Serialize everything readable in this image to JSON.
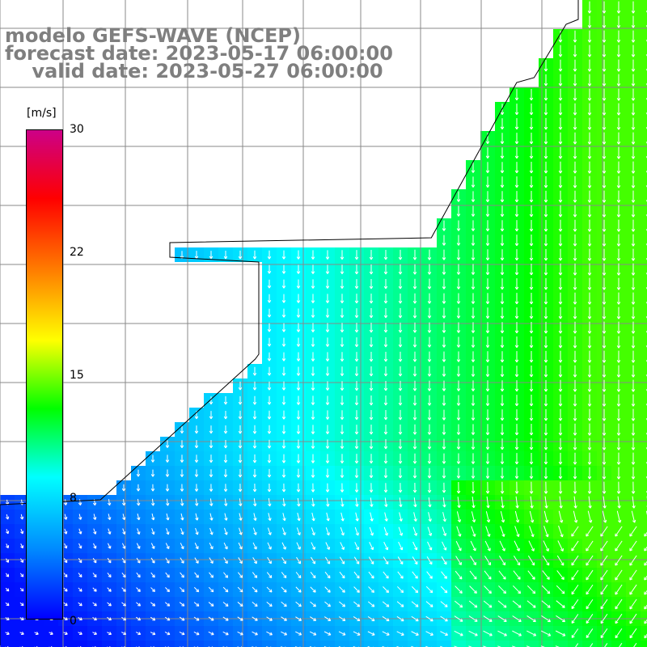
{
  "title": {
    "line1": "modelo GEFS-WAVE (NCEP)",
    "line2": "forecast date: 2023-05-17 06:00:00",
    "line3": "    valid date: 2023-05-27 06:00:00"
  },
  "colorbar": {
    "unit": "[m/s]",
    "min": 0,
    "max": 30,
    "ticks": [
      "30",
      "22",
      "15",
      "8",
      "0"
    ],
    "tick_values": [
      30,
      22,
      15,
      8,
      0
    ],
    "colors": [
      "#0000ff",
      "#0088ff",
      "#00ffff",
      "#00ff00",
      "#ffff00",
      "#ff8000",
      "#ff0000",
      "#cc0088"
    ]
  },
  "map": {
    "variable": "wind speed",
    "land_color": "#ffffff",
    "grid_color": "#888888",
    "coast_color": "#000000",
    "arrow_color": "#ffffff",
    "arrow_direction": "mostly southward, turning east-southeast in the south"
  }
}
